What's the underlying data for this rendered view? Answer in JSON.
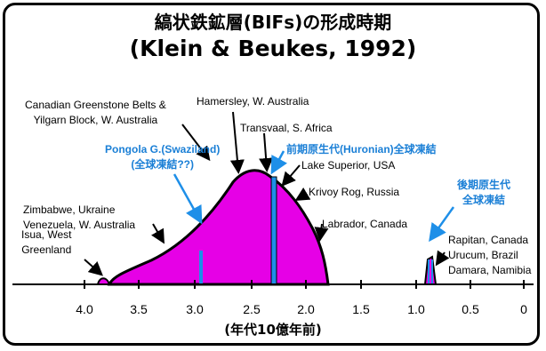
{
  "title": "縞状鉄鉱層(BIFs)の形成時期",
  "subtitle": "(Klein & Beukes, 1992)",
  "xlabel": "(年代10億年前)",
  "ticks": [
    "4.0",
    "3.5",
    "3.0",
    "2.5",
    "2.0",
    "1.5",
    "1.0",
    "0.5",
    "0"
  ],
  "colors": {
    "fill": "#e600e6",
    "glaciation": "#1e8fe8",
    "text_blue": "#1a7fd6"
  },
  "labels": {
    "canadian": [
      "Canadian Greenstone Belts &",
      "Yilgarn Block, W. Australia"
    ],
    "hamersley": "Hamersley, W. Australia",
    "transvaal": "Transvaal, S. Africa",
    "huronian": "前期原生代(Huronian)全球凍結",
    "lake_superior": "Lake Superior, USA",
    "krivoy": "Krivoy Rog, Russia",
    "pongola": [
      "Pongola G.(Swaziland)",
      "(全球凍結??)"
    ],
    "zimbabwe": [
      "Zimbabwe, Ukraine",
      "Venezuela, W. Australia"
    ],
    "labrador": "Labrador, Canada",
    "isua": [
      "Isua, West",
      "Greenland"
    ],
    "late_prot": [
      "後期原生代",
      "全球凍結"
    ],
    "rapitan": [
      "Rapitan, Canada",
      "Urucum, Brazil",
      "Damara, Namibia"
    ]
  }
}
